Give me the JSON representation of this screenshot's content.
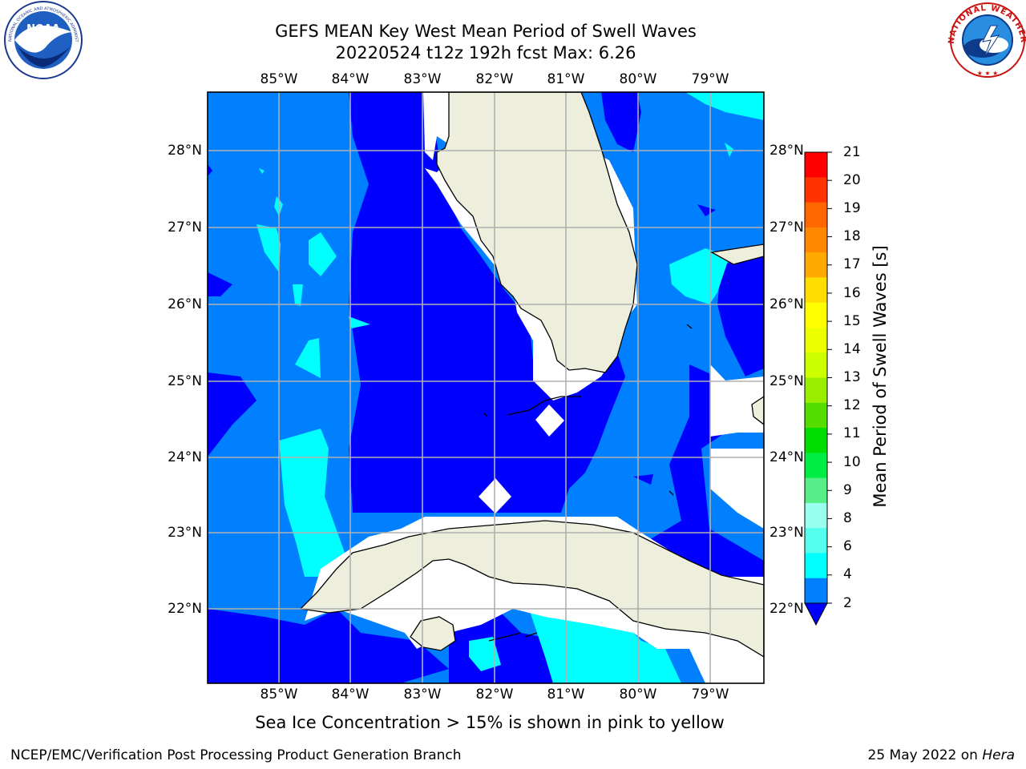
{
  "title": {
    "line1": "GEFS MEAN Key West Mean Period of Swell Waves",
    "line2": "20220524 t12z 192h fcst   Max: 6.26"
  },
  "map": {
    "lon_labels": [
      "85°W",
      "84°W",
      "83°W",
      "82°W",
      "81°W",
      "80°W",
      "79°W"
    ],
    "lat_labels": [
      "28°N",
      "27°N",
      "26°N",
      "25°N",
      "24°N",
      "23°N",
      "22°N"
    ],
    "colors": {
      "ocean_2_4": "#0080ff",
      "ocean_lt2": "#0000ff",
      "ocean_4_6": "#00ffff",
      "land": "#eeeedd",
      "nodata": "#ffffff",
      "grid": "#b0b0b0"
    }
  },
  "colorbar": {
    "label": "Mean Period of Swell Waves [s]",
    "ticks": [
      "21",
      "20",
      "19",
      "18",
      "17",
      "16",
      "15",
      "14",
      "13",
      "12",
      "11",
      "10",
      "9",
      "8",
      "6",
      "4",
      "2"
    ],
    "colors": [
      "#ff0000",
      "#ff3300",
      "#ff6600",
      "#ff8800",
      "#ffaa00",
      "#ffdd00",
      "#ffff00",
      "#eeff00",
      "#ccff00",
      "#99ee00",
      "#55dd00",
      "#00dd00",
      "#00ee44",
      "#55ee88",
      "#99ffee",
      "#55ffee",
      "#00ffff",
      "#0080ff",
      "#0000ff"
    ]
  },
  "note": "Sea Ice Concentration > 15% is shown in pink to yellow",
  "footer": {
    "left": "NCEP/EMC/Verification Post Processing Product Generation Branch",
    "right_date": "25 May 2022 on",
    "right_host": "Hera"
  },
  "logos": {
    "left": "NOAA",
    "left_ring": "NATIONAL OCEANIC AND ATMOSPHERIC ADMINISTRATION · U.S. DEPARTMENT OF COMMERCE",
    "right_ring": "NATIONAL WEATHER SERVICE"
  }
}
